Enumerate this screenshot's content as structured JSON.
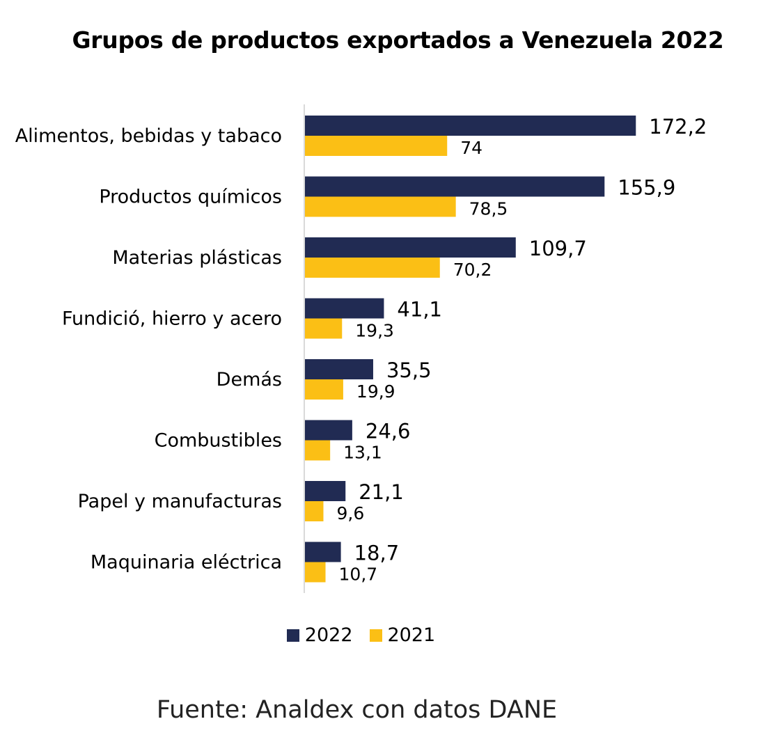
{
  "colors": {
    "series_2022": "#212B53",
    "series_2021": "#FBBF15",
    "axis": "#D9D9D9"
  },
  "chart_data": {
    "type": "bar",
    "orientation": "horizontal",
    "title": "Grupos de productos exportados a Venezuela 2022",
    "categories": [
      "Alimentos, bebidas y tabaco",
      "Productos químicos",
      "Materias plásticas",
      "Fundició, hierro y acero",
      "Demás",
      "Combustibles",
      "Papel y manufacturas",
      "Maquinaria eléctrica"
    ],
    "series": [
      {
        "name": "2022",
        "values": [
          172.2,
          155.9,
          109.7,
          41.1,
          35.5,
          24.6,
          21.1,
          18.7
        ],
        "labels": [
          "172,2",
          "155,9",
          "109,7",
          "41,1",
          "35,5",
          "24,6",
          "21,1",
          "18,7"
        ]
      },
      {
        "name": "2021",
        "values": [
          74,
          78.5,
          70.2,
          19.3,
          19.9,
          13.1,
          9.6,
          10.7
        ],
        "labels": [
          "74",
          "78,5",
          "70,2",
          "19,3",
          "19,9",
          "13,1",
          "9,6",
          "10,7"
        ]
      }
    ],
    "xlim": [
      0,
      180
    ],
    "grid": false,
    "legend": "bottom-center",
    "source": "Fuente: Analdex con datos DANE"
  }
}
